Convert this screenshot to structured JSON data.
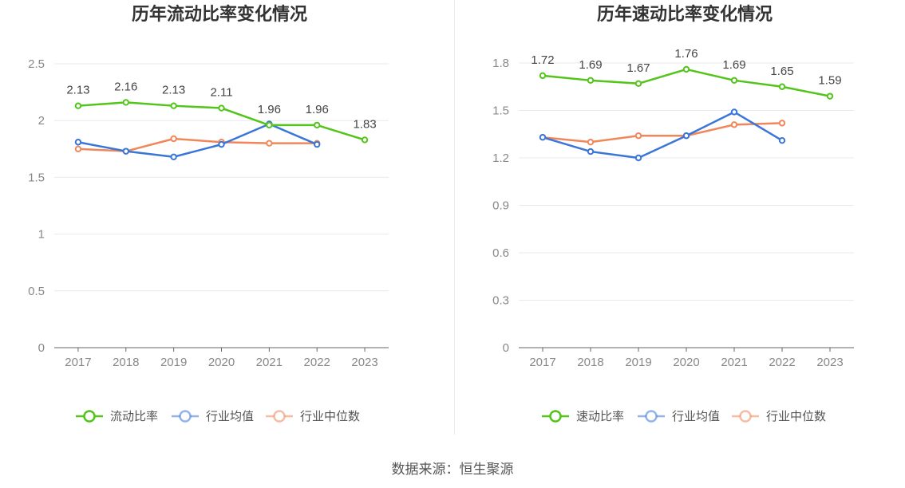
{
  "source": "数据来源：恒生聚源",
  "colors": {
    "primary": "#52c41a",
    "avg": "#3a75d8",
    "median": "#f0875a",
    "grid": "#e6e9f0",
    "axis": "#666666"
  },
  "chart_data": [
    {
      "type": "line",
      "title": "历年流动比率变化情况",
      "categories": [
        "2017",
        "2018",
        "2019",
        "2020",
        "2021",
        "2022",
        "2023"
      ],
      "ylim": [
        0,
        2.5
      ],
      "yticks": [
        0,
        0.5,
        1,
        1.5,
        2,
        2.5
      ],
      "ytick_labels": [
        "0",
        "0.5",
        "1",
        "1.5",
        "2",
        "2.5"
      ],
      "grid": true,
      "legend_position": "bottom",
      "series": [
        {
          "name": "流动比率",
          "values": [
            2.13,
            2.16,
            2.13,
            2.11,
            1.96,
            1.96,
            1.83
          ],
          "labels": [
            "2.13",
            "2.16",
            "2.13",
            "2.11",
            "1.96",
            "1.96",
            "1.83"
          ],
          "show_labels": true
        },
        {
          "name": "行业均值",
          "values": [
            1.81,
            1.73,
            1.68,
            1.79,
            1.97,
            1.79,
            null
          ],
          "show_labels": false
        },
        {
          "name": "行业中位数",
          "values": [
            1.75,
            1.73,
            1.84,
            1.81,
            1.8,
            1.8,
            null
          ],
          "show_labels": false
        }
      ]
    },
    {
      "type": "line",
      "title": "历年速动比率变化情况",
      "categories": [
        "2017",
        "2018",
        "2019",
        "2020",
        "2021",
        "2022",
        "2023"
      ],
      "ylim": [
        0,
        1.8
      ],
      "yticks": [
        0,
        0.3,
        0.6,
        0.9,
        1.2,
        1.5,
        1.8
      ],
      "ytick_labels": [
        "0",
        "0.3",
        "0.6",
        "0.9",
        "1.2",
        "1.5",
        "1.8"
      ],
      "grid": true,
      "legend_position": "bottom",
      "series": [
        {
          "name": "速动比率",
          "values": [
            1.72,
            1.69,
            1.67,
            1.76,
            1.69,
            1.65,
            1.59
          ],
          "labels": [
            "1.72",
            "1.69",
            "1.67",
            "1.76",
            "1.69",
            "1.65",
            "1.59"
          ],
          "show_labels": true
        },
        {
          "name": "行业均值",
          "values": [
            1.33,
            1.24,
            1.2,
            1.34,
            1.49,
            1.31,
            null
          ],
          "show_labels": false
        },
        {
          "name": "行业中位数",
          "values": [
            1.33,
            1.3,
            1.34,
            1.34,
            1.41,
            1.42,
            null
          ],
          "show_labels": false
        }
      ]
    }
  ]
}
